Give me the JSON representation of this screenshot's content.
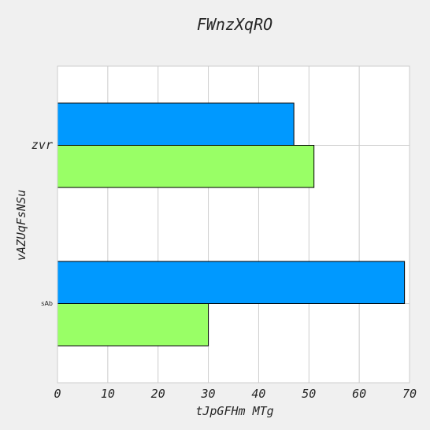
{
  "chart_data": {
    "type": "bar",
    "orientation": "horizontal",
    "title": "FWnzXqRO",
    "xlabel": "tJpGFHm  MTg",
    "ylabel": "vAZUqFsNSu",
    "categories": [
      "sAb",
      "zvr"
    ],
    "series": [
      {
        "values": [
          30,
          51
        ],
        "color": "#99ff66"
      },
      {
        "values": [
          69,
          47
        ],
        "color": "#0099ff"
      }
    ],
    "xlim": [
      0,
      70
    ],
    "xticks": [
      0,
      10,
      20,
      30,
      40,
      50,
      60,
      70
    ],
    "grid": true,
    "legend": "none"
  },
  "colors": {
    "background": "#f0f0f0",
    "plot_background": "#ffffff",
    "grid": "#cccccc",
    "bar_edge": "#000000"
  }
}
